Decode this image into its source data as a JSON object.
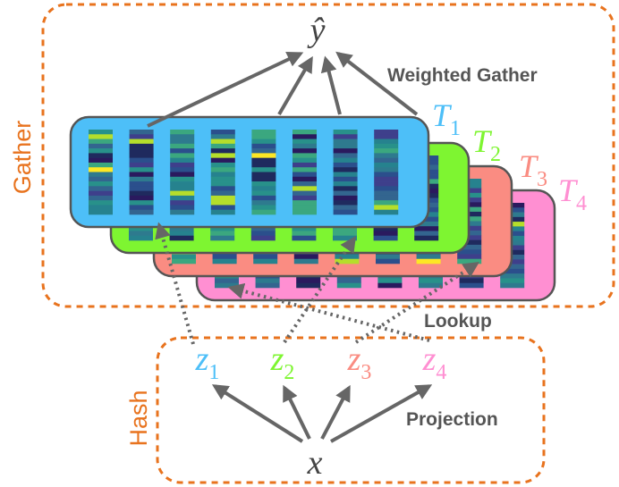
{
  "labels": {
    "gather": "Gather",
    "hash": "Hash",
    "weighted_gather": "Weighted Gather",
    "lookup": "Lookup",
    "projection": "Projection",
    "output": "ŷ",
    "input": "x"
  },
  "tables": [
    {
      "letter": "T",
      "sub": "4",
      "color": "#ff8fd2"
    },
    {
      "letter": "T",
      "sub": "3",
      "color": "#fa8c82"
    },
    {
      "letter": "T",
      "sub": "2",
      "color": "#7ef531"
    },
    {
      "letter": "T",
      "sub": "1",
      "color": "#4dbff8"
    }
  ],
  "hashes": [
    {
      "letter": "z",
      "sub": "1",
      "color": "#4dbff8"
    },
    {
      "letter": "z",
      "sub": "2",
      "color": "#7ef531"
    },
    {
      "letter": "z",
      "sub": "3",
      "color": "#fa8c82"
    },
    {
      "letter": "z",
      "sub": "4",
      "color": "#ff8fd2"
    }
  ],
  "colors": {
    "dash": "#e8731e",
    "arrow": "#666666",
    "text": "#555555",
    "table_border": "#555555"
  }
}
